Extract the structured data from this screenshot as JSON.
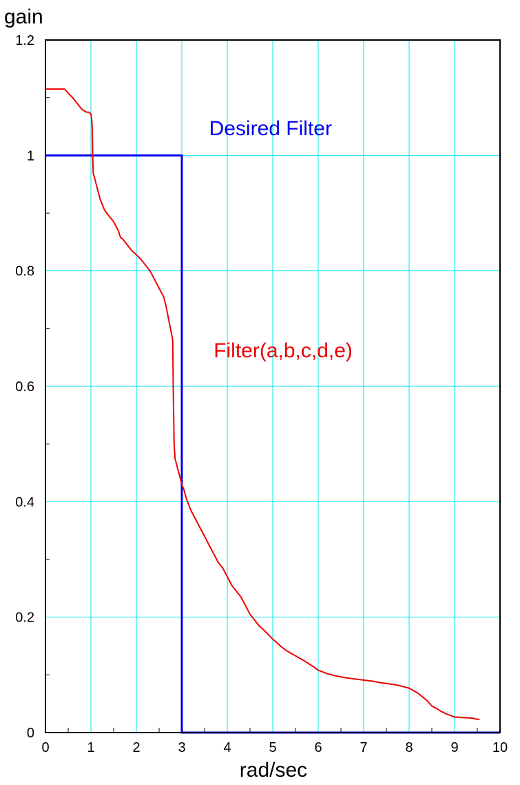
{
  "chart_data": {
    "type": "line",
    "xlabel": "rad/sec",
    "ylabel": "gain",
    "xlim": [
      0,
      10
    ],
    "ylim": [
      0,
      1.2
    ],
    "x_ticks": [
      "0",
      "1",
      "2",
      "3",
      "4",
      "5",
      "6",
      "7",
      "8",
      "9",
      "10"
    ],
    "y_ticks": [
      "0",
      "0.2",
      "0.4",
      "0.6",
      "0.8",
      "1",
      "1.2"
    ],
    "grid": true,
    "grid_color": "#00e5ee",
    "series": [
      {
        "name": "Desired Filter",
        "color": "#0000ee",
        "x": [
          0,
          3.0,
          3.0,
          10
        ],
        "y": [
          1.0,
          1.0,
          0.0,
          0.0
        ]
      },
      {
        "name": "Filter(a,b,c,d,e)",
        "color": "#ee0000",
        "x": [
          0,
          0.05,
          0.42,
          0.5,
          0.6,
          0.7,
          0.8,
          0.9,
          0.95,
          1.0,
          1.02,
          1.03,
          1.04,
          1.05,
          1.1,
          1.15,
          1.2,
          1.25,
          1.3,
          1.4,
          1.5,
          1.6,
          1.65,
          1.7,
          1.8,
          1.9,
          2.0,
          2.1,
          2.2,
          2.3,
          2.4,
          2.5,
          2.6,
          2.65,
          2.7,
          2.75,
          2.8,
          2.81,
          2.83,
          2.85,
          2.9,
          2.95,
          3.0,
          3.05,
          3.1,
          3.2,
          3.3,
          3.4,
          3.5,
          3.6,
          3.7,
          3.8,
          3.9,
          4.0,
          4.1,
          4.2,
          4.3,
          4.4,
          4.5,
          4.6,
          4.7,
          4.8,
          4.9,
          5.0,
          5.1,
          5.2,
          5.3,
          5.5,
          5.7,
          5.9,
          6.0,
          6.2,
          6.4,
          6.6,
          6.8,
          7.0,
          7.2,
          7.4,
          7.5,
          7.7,
          7.8,
          8.0,
          8.2,
          8.4,
          8.5,
          8.6,
          8.7,
          8.8,
          8.9,
          9.0,
          9.2,
          9.4,
          9.5,
          9.55
        ],
        "y": [
          1.115,
          1.115,
          1.115,
          1.108,
          1.1,
          1.09,
          1.08,
          1.075,
          1.075,
          1.072,
          1.06,
          1.045,
          1.0,
          0.97,
          0.955,
          0.94,
          0.925,
          0.915,
          0.905,
          0.895,
          0.885,
          0.87,
          0.858,
          0.855,
          0.845,
          0.835,
          0.828,
          0.82,
          0.81,
          0.8,
          0.785,
          0.77,
          0.755,
          0.74,
          0.72,
          0.7,
          0.68,
          0.6,
          0.5,
          0.475,
          0.46,
          0.445,
          0.43,
          0.42,
          0.405,
          0.385,
          0.37,
          0.355,
          0.34,
          0.325,
          0.31,
          0.295,
          0.285,
          0.27,
          0.255,
          0.245,
          0.235,
          0.22,
          0.205,
          0.195,
          0.185,
          0.178,
          0.17,
          0.162,
          0.155,
          0.148,
          0.142,
          0.133,
          0.124,
          0.114,
          0.108,
          0.102,
          0.098,
          0.095,
          0.093,
          0.091,
          0.089,
          0.086,
          0.085,
          0.083,
          0.081,
          0.077,
          0.068,
          0.055,
          0.046,
          0.042,
          0.037,
          0.033,
          0.03,
          0.027,
          0.026,
          0.025,
          0.023,
          0.023
        ]
      }
    ],
    "annotations": [
      {
        "text": "Desired Filter",
        "x": 3.6,
        "y": 1.035,
        "color": "#0000ee"
      },
      {
        "text": "Filter(a,b,c,d,e)",
        "x": 3.7,
        "y": 0.65,
        "color": "#ee0000"
      }
    ]
  }
}
